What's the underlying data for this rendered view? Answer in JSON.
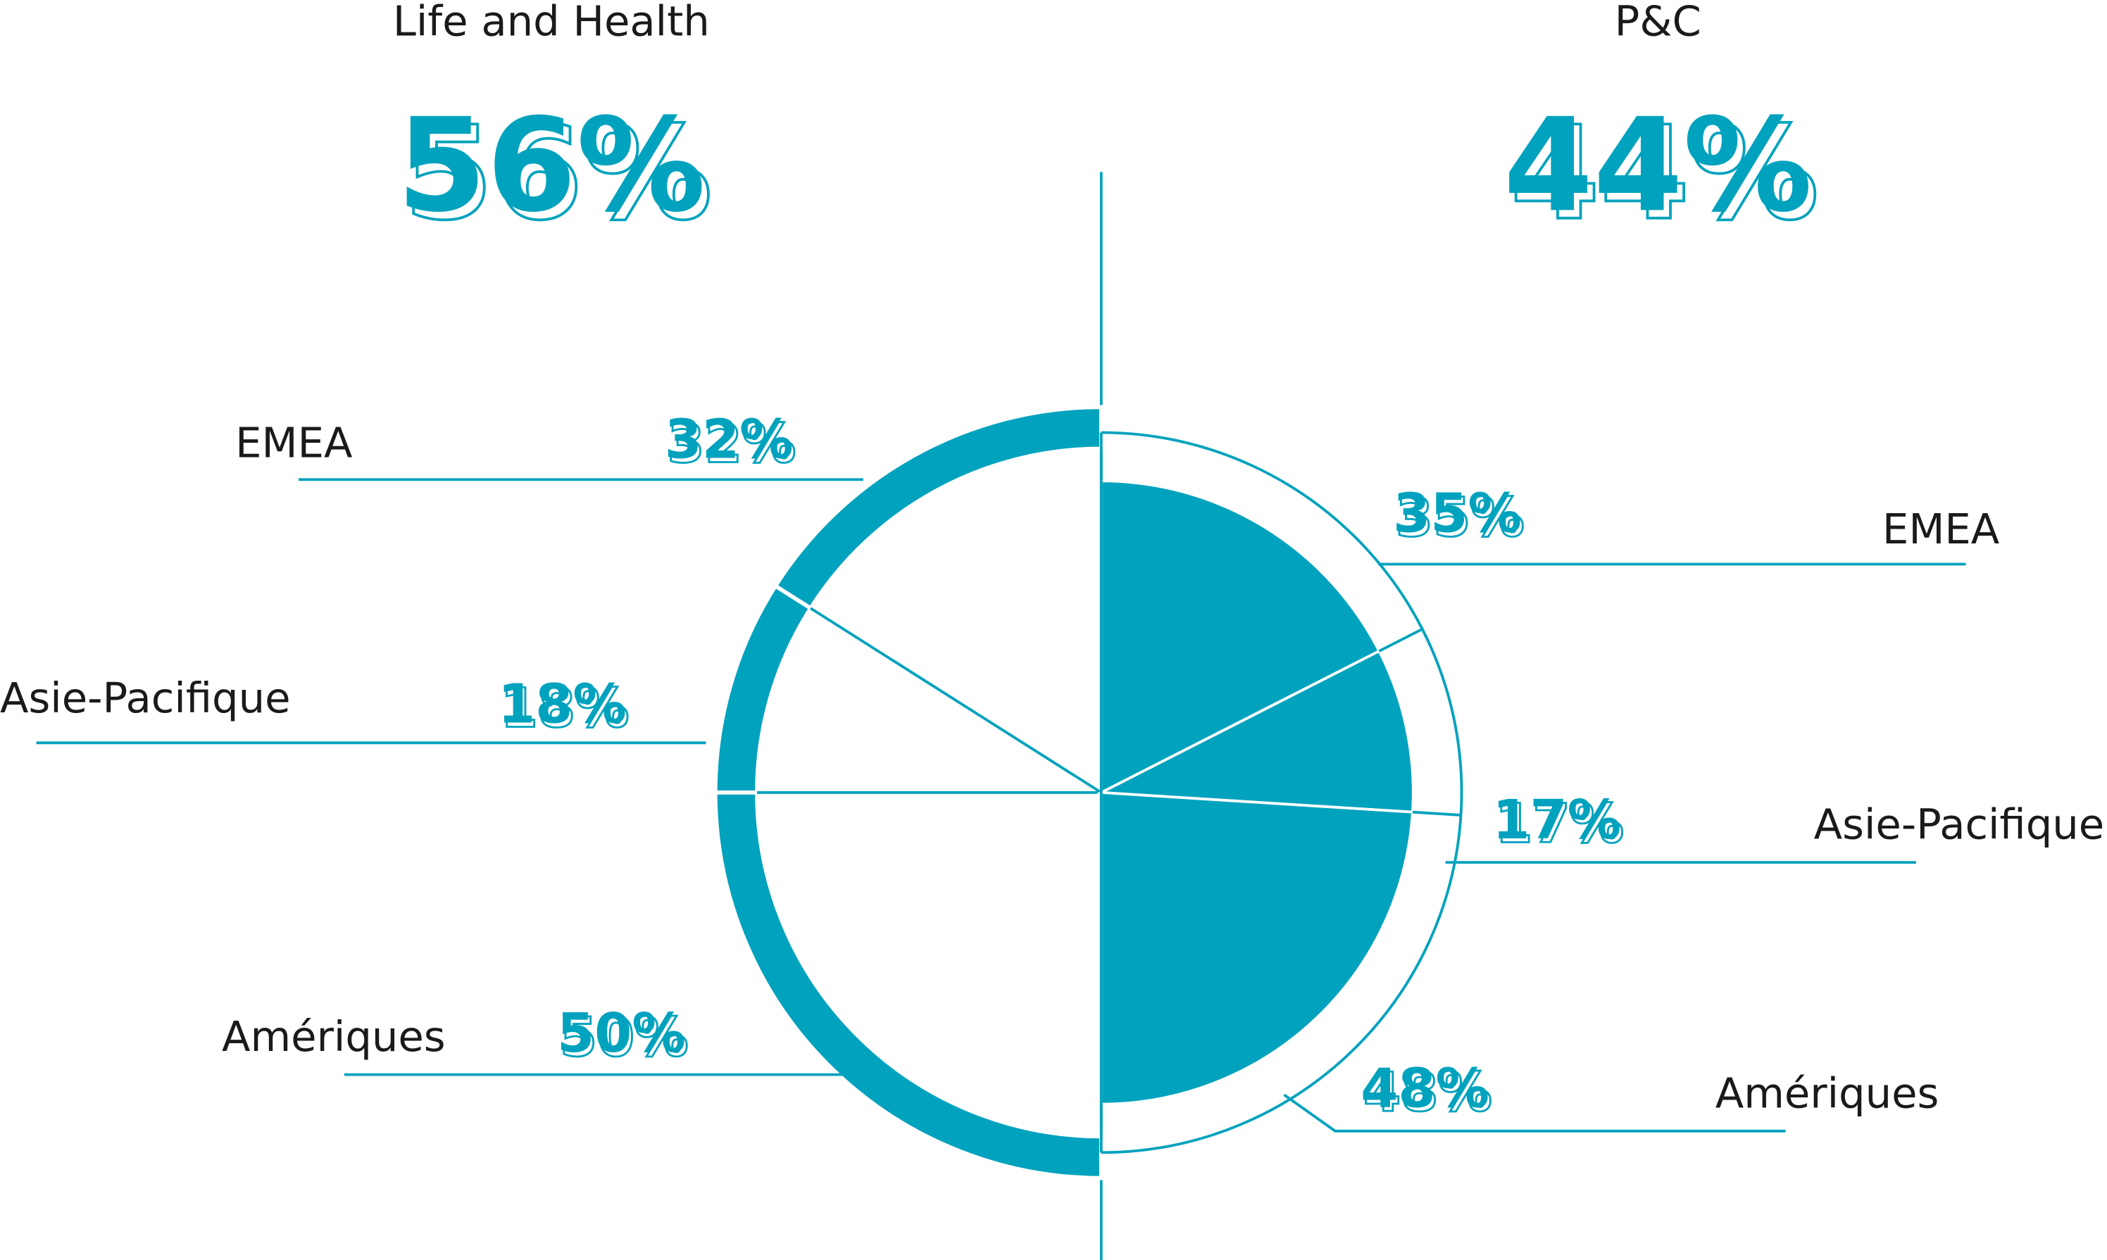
{
  "chart_data": [
    {
      "type": "pie",
      "title": "Life and Health",
      "share": 56,
      "share_label": "56%",
      "color": "#00a2bd",
      "categories": [
        "EMEA",
        "Asie-Pacifique",
        "Amériques"
      ],
      "values": [
        32,
        18,
        50
      ],
      "value_labels": [
        "32%",
        "18%",
        "50%"
      ]
    },
    {
      "type": "pie",
      "title": "P&C",
      "share": 44,
      "share_label": "44%",
      "color": "#00a2bd",
      "categories": [
        "EMEA",
        "Asie-Pacifique",
        "Amériques"
      ],
      "values": [
        35,
        17,
        48
      ],
      "value_labels": [
        "35%",
        "17%",
        "48%"
      ]
    }
  ]
}
